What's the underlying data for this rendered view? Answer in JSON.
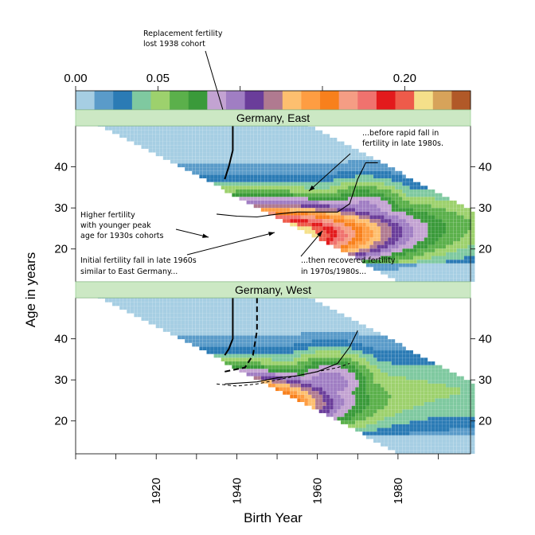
{
  "chart_data": {
    "type": "heatmap",
    "title": "",
    "xlabel": "Birth Year",
    "ylabel": "Age in years",
    "x_range": [
      1900,
      1998
    ],
    "y_range": [
      12,
      50
    ],
    "x_ticks": [
      "1920",
      "1940",
      "1960",
      "1980"
    ],
    "y_ticks": [
      "20",
      "30",
      "40"
    ],
    "colorkey": {
      "ticks": [
        "0.00",
        "0.05",
        "0.20"
      ],
      "range": [
        0.0,
        0.24
      ],
      "colors": [
        "#a6cee3",
        "#5a9bc9",
        "#2b7bb5",
        "#7fc9a0",
        "#9dd16d",
        "#5bb04b",
        "#3a9a3a",
        "#c3a3d2",
        "#a07ec3",
        "#6a3d9a",
        "#b07a90",
        "#fdbf6f",
        "#fe9d42",
        "#f8801c",
        "#f59d84",
        "#f0726e",
        "#e31a1c",
        "#ee5b4a",
        "#f5e08a",
        "#d7a35a",
        "#b15928"
      ]
    },
    "panels": [
      {
        "name": "Germany, East",
        "lexis_band": {
          "birth_year_start": 1905,
          "birth_year_end": 1995,
          "age_min": 12,
          "age_max": 50
        },
        "peak_region": {
          "cohort_range": [
            1930,
            1962
          ],
          "age_range": [
            18,
            27
          ],
          "peak_value": 0.2
        },
        "mean_age_line": [
          [
            1935,
            28.5
          ],
          [
            1940,
            28
          ],
          [
            1945,
            27.8
          ],
          [
            1950,
            28.5
          ],
          [
            1955,
            29
          ],
          [
            1960,
            29
          ],
          [
            1965,
            29
          ],
          [
            1968,
            31
          ],
          [
            1970,
            37
          ],
          [
            1972,
            41
          ],
          [
            1975,
            41
          ]
        ],
        "replacement_line": [
          [
            1937,
            37
          ],
          [
            1938,
            40
          ],
          [
            1939,
            44
          ],
          [
            1939,
            50
          ]
        ],
        "annotations": [
          {
            "text_lines": [
              "...before rapid fall in",
              "fertility in late 1980s."
            ]
          },
          {
            "text_lines": [
              "Higher fertility",
              "with younger peak",
              "age  for 1930s cohorts"
            ]
          },
          {
            "text_lines": [
              "Initial fertility fall in late 1960s",
              "similar to East Germany..."
            ]
          },
          {
            "text_lines": [
              "...then recovered fertility",
              "in 1970s/1980s..."
            ]
          }
        ]
      },
      {
        "name": "Germany, West",
        "lexis_band": {
          "birth_year_start": 1905,
          "birth_year_end": 1995,
          "age_min": 12,
          "age_max": 50
        },
        "peak_region": {
          "cohort_range": [
            1925,
            1950
          ],
          "age_range": [
            18,
            28
          ],
          "peak_value": 0.18
        },
        "mean_age_line": [
          [
            1937,
            29
          ],
          [
            1945,
            29.5
          ],
          [
            1950,
            30.5
          ],
          [
            1955,
            31
          ],
          [
            1960,
            32
          ],
          [
            1965,
            34
          ],
          [
            1968,
            38
          ],
          [
            1970,
            42
          ]
        ],
        "dashed_line": [
          [
            1935,
            29
          ],
          [
            1940,
            28.5
          ],
          [
            1945,
            29
          ],
          [
            1950,
            30
          ],
          [
            1955,
            31
          ],
          [
            1960,
            32
          ],
          [
            1965,
            33
          ],
          [
            1968,
            34
          ]
        ],
        "replacement_line": [
          [
            1937,
            36
          ],
          [
            1938,
            37.5
          ],
          [
            1939,
            40
          ],
          [
            1939,
            50
          ]
        ],
        "dashed_replacement_line": [
          [
            1937,
            32
          ],
          [
            1942,
            33
          ],
          [
            1944,
            36
          ],
          [
            1945,
            42
          ],
          [
            1945,
            50
          ]
        ]
      }
    ],
    "top_annotation": {
      "text_lines": [
        "Replacement fertility",
        "lost 1938 cohort"
      ]
    }
  }
}
